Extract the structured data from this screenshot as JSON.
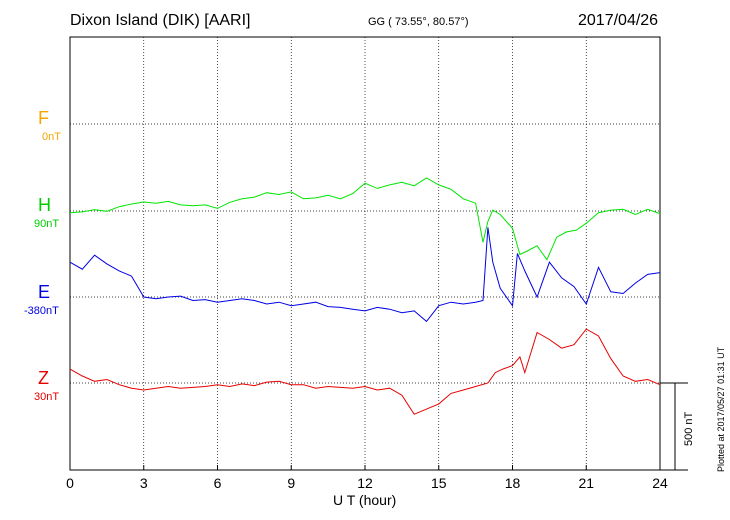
{
  "header": {
    "station": "Dixon Island (DIK)  [AARI]",
    "coords": "GG ( 73.55°,  80.57°)",
    "date": "2017/04/26"
  },
  "plotted_note": "Plotted at 2017/05/27 01:31  UT",
  "scale_label": "500 nT",
  "chart_data": {
    "type": "line",
    "xlabel": "U T (hour)",
    "xlim": [
      0,
      24
    ],
    "xticks": [
      0,
      3,
      6,
      9,
      12,
      15,
      18,
      21,
      24
    ],
    "grid": true,
    "scale_bar_nT": 500,
    "series": [
      {
        "name": "F",
        "baseline": "0nT",
        "color": "#f5a500",
        "points": []
      },
      {
        "name": "H",
        "baseline": "90nT",
        "color": "#00e600",
        "points": [
          [
            0,
            -10
          ],
          [
            0.5,
            -5
          ],
          [
            1,
            8
          ],
          [
            1.5,
            -2
          ],
          [
            2,
            25
          ],
          [
            2.5,
            40
          ],
          [
            3,
            52
          ],
          [
            3.5,
            45
          ],
          [
            4,
            55
          ],
          [
            4.5,
            35
          ],
          [
            5,
            30
          ],
          [
            5.5,
            35
          ],
          [
            6,
            15
          ],
          [
            6.5,
            50
          ],
          [
            7,
            70
          ],
          [
            7.5,
            80
          ],
          [
            8,
            105
          ],
          [
            8.5,
            95
          ],
          [
            9,
            110
          ],
          [
            9.5,
            70
          ],
          [
            10,
            75
          ],
          [
            10.5,
            90
          ],
          [
            11,
            70
          ],
          [
            11.5,
            100
          ],
          [
            12,
            160
          ],
          [
            12.5,
            130
          ],
          [
            13,
            150
          ],
          [
            13.5,
            165
          ],
          [
            14,
            145
          ],
          [
            14.5,
            190
          ],
          [
            15,
            150
          ],
          [
            15.5,
            125
          ],
          [
            16,
            70
          ],
          [
            16.5,
            45
          ],
          [
            16.8,
            -180
          ],
          [
            17,
            -60
          ],
          [
            17.2,
            5
          ],
          [
            17.5,
            -20
          ],
          [
            18,
            -100
          ],
          [
            18.3,
            -250
          ],
          [
            18.6,
            -230
          ],
          [
            19,
            -200
          ],
          [
            19.4,
            -280
          ],
          [
            19.8,
            -150
          ],
          [
            20.2,
            -120
          ],
          [
            20.6,
            -110
          ],
          [
            21,
            -70
          ],
          [
            21.5,
            -10
          ],
          [
            22,
            5
          ],
          [
            22.5,
            10
          ],
          [
            23,
            -20
          ],
          [
            23.5,
            10
          ],
          [
            24,
            -15
          ]
        ]
      },
      {
        "name": "E",
        "baseline": "-380nT",
        "color": "#0000e6",
        "points": [
          [
            0,
            200
          ],
          [
            0.5,
            160
          ],
          [
            1,
            240
          ],
          [
            1.5,
            190
          ],
          [
            2,
            150
          ],
          [
            2.5,
            120
          ],
          [
            3,
            0
          ],
          [
            3.5,
            -10
          ],
          [
            4,
            0
          ],
          [
            4.5,
            5
          ],
          [
            5,
            -20
          ],
          [
            5.5,
            -15
          ],
          [
            6,
            -30
          ],
          [
            6.5,
            -20
          ],
          [
            7,
            -10
          ],
          [
            7.5,
            -20
          ],
          [
            8,
            -40
          ],
          [
            8.5,
            -30
          ],
          [
            9,
            -50
          ],
          [
            9.5,
            -40
          ],
          [
            10,
            -30
          ],
          [
            10.5,
            -55
          ],
          [
            11,
            -60
          ],
          [
            11.5,
            -70
          ],
          [
            12,
            -80
          ],
          [
            12.5,
            -60
          ],
          [
            13,
            -70
          ],
          [
            13.5,
            -90
          ],
          [
            14,
            -80
          ],
          [
            14.5,
            -140
          ],
          [
            15,
            -50
          ],
          [
            15.5,
            -30
          ],
          [
            16,
            -40
          ],
          [
            16.5,
            -30
          ],
          [
            16.8,
            -20
          ],
          [
            17,
            400
          ],
          [
            17.2,
            200
          ],
          [
            17.5,
            50
          ],
          [
            18,
            -50
          ],
          [
            18.2,
            250
          ],
          [
            18.5,
            150
          ],
          [
            19,
            0
          ],
          [
            19.5,
            200
          ],
          [
            20,
            110
          ],
          [
            20.5,
            60
          ],
          [
            21,
            -40
          ],
          [
            21.5,
            170
          ],
          [
            22,
            30
          ],
          [
            22.5,
            20
          ],
          [
            23,
            80
          ],
          [
            23.5,
            130
          ],
          [
            24,
            140
          ]
        ]
      },
      {
        "name": "Z",
        "baseline": "30nT",
        "color": "#e60000",
        "points": [
          [
            0,
            80
          ],
          [
            0.5,
            40
          ],
          [
            1,
            10
          ],
          [
            1.5,
            20
          ],
          [
            2,
            -10
          ],
          [
            2.5,
            -30
          ],
          [
            3,
            -40
          ],
          [
            3.5,
            -30
          ],
          [
            4,
            -20
          ],
          [
            4.5,
            -30
          ],
          [
            5,
            -25
          ],
          [
            5.5,
            -20
          ],
          [
            6,
            -10
          ],
          [
            6.5,
            -20
          ],
          [
            7,
            -5
          ],
          [
            7.5,
            -15
          ],
          [
            8,
            5
          ],
          [
            8.5,
            10
          ],
          [
            9,
            -10
          ],
          [
            9.5,
            -10
          ],
          [
            10,
            -30
          ],
          [
            10.5,
            -20
          ],
          [
            11,
            -25
          ],
          [
            11.5,
            -30
          ],
          [
            12,
            -20
          ],
          [
            12.5,
            -40
          ],
          [
            13,
            -30
          ],
          [
            13.5,
            -70
          ],
          [
            14,
            -180
          ],
          [
            14.5,
            -150
          ],
          [
            15,
            -120
          ],
          [
            15.5,
            -60
          ],
          [
            16,
            -40
          ],
          [
            16.5,
            -20
          ],
          [
            17,
            0
          ],
          [
            17.3,
            60
          ],
          [
            17.6,
            80
          ],
          [
            18,
            100
          ],
          [
            18.3,
            150
          ],
          [
            18.5,
            60
          ],
          [
            19,
            290
          ],
          [
            19.5,
            250
          ],
          [
            20,
            200
          ],
          [
            20.5,
            220
          ],
          [
            21,
            310
          ],
          [
            21.5,
            270
          ],
          [
            22,
            140
          ],
          [
            22.5,
            40
          ],
          [
            23,
            10
          ],
          [
            23.5,
            20
          ],
          [
            24,
            -10
          ]
        ]
      }
    ]
  }
}
